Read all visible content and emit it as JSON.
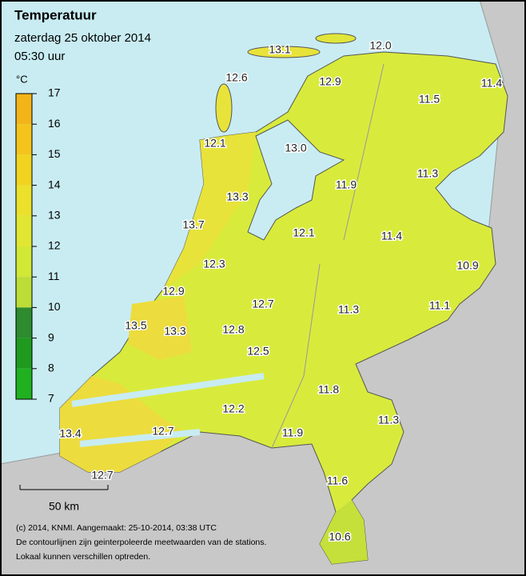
{
  "header": {
    "title": "Temperatuur",
    "date": "zaterdag 25 oktober 2014",
    "time": "05:30 uur"
  },
  "legend": {
    "unit": "°C",
    "ticks": [
      "17",
      "16",
      "15",
      "14",
      "13",
      "12",
      "11",
      "10",
      "9",
      "8",
      "7"
    ]
  },
  "stations": [
    "13.1",
    "12.0",
    "12.6",
    "12.9",
    "11.4",
    "11.5",
    "12.1",
    "13.0",
    "11.3",
    "13.3",
    "11.9",
    "13.7",
    "12.1",
    "11.4",
    "10.9",
    "12.3",
    "12.9",
    "12.7",
    "11.3",
    "11.1",
    "13.5",
    "13.3",
    "12.8",
    "12.5",
    "11.8",
    "12.2",
    "11.3",
    "13.4",
    "12.7",
    "11.9",
    "12.7",
    "11.6",
    "10.6"
  ],
  "scale": {
    "label": "50 km"
  },
  "footer": [
    "(c) 2014, KNMI. Aangemaakt: 25-10-2014, 03:38 UTC",
    "De contourlijnen zijn geinterpoleerde meetwaarden van de stations.",
    "Lokaal kunnen verschillen optreden."
  ]
}
